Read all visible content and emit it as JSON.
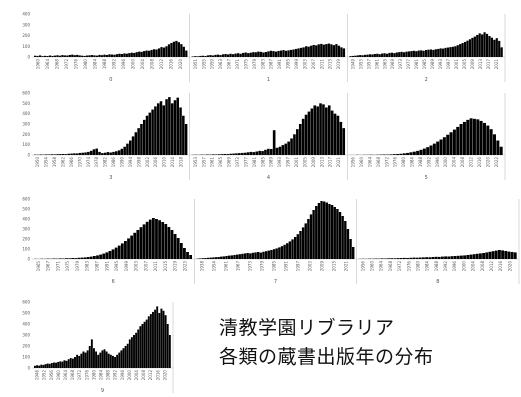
{
  "caption": {
    "line1": "清教学園リブラリア",
    "line2": "各類の蔵書出版年の分布"
  },
  "colors": {
    "bar": "#000000",
    "axis": "#bfbfbf",
    "text": "#555555",
    "grid": "#e6e6e6"
  },
  "chart_data": {
    "type": "bar",
    "rows": [
      {
        "ymax": 400,
        "yticks": [
          0,
          100,
          200,
          300,
          400
        ],
        "panels": [
          {
            "label": "0",
            "xticks": [
              "1960",
              "1964",
              "1968",
              "1972",
              "1976",
              "1980",
              "1984",
              "1988",
              "1992",
              "1996",
              "2000",
              "2004",
              "2008",
              "2012",
              "2016",
              "2020"
            ],
            "values": [
              12,
              10,
              15,
              8,
              11,
              9,
              14,
              10,
              13,
              16,
              12,
              18,
              15,
              14,
              19,
              22,
              17,
              20,
              15,
              12,
              10,
              14,
              16,
              18,
              15,
              13,
              20,
              17,
              22,
              19,
              25,
              23,
              21,
              26,
              30,
              28,
              33,
              31,
              36,
              40,
              38,
              45,
              50,
              48,
              55,
              60,
              58,
              66,
              72,
              70,
              80,
              92,
              88,
              100,
              118,
              130,
              142,
              150,
              138,
              120,
              95,
              60
            ]
          },
          {
            "label": "1",
            "xticks": [
              "1951",
              "1955",
              "1959",
              "1963",
              "1967",
              "1971",
              "1975",
              "1979",
              "1983",
              "1987",
              "1991",
              "1995",
              "1999",
              "2003",
              "2007",
              "2011",
              "2015",
              "2019"
            ],
            "values": [
              5,
              8,
              6,
              10,
              12,
              9,
              15,
              18,
              14,
              20,
              22,
              18,
              25,
              28,
              24,
              30,
              26,
              32,
              35,
              30,
              38,
              42,
              36,
              40,
              45,
              44,
              50,
              48,
              42,
              46,
              52,
              58,
              55,
              50,
              56,
              60,
              64,
              58,
              62,
              66,
              70,
              75,
              80,
              85,
              90,
              100,
              96,
              105,
              112,
              108,
              118,
              122,
              115,
              120,
              125,
              118,
              110,
              120,
              105,
              90,
              80
            ]
          },
          {
            "label": "2",
            "xticks": [
              "1949",
              "1953",
              "1957",
              "1961",
              "1965",
              "1969",
              "1973",
              "1977",
              "1981",
              "1985",
              "1989",
              "1993",
              "1997",
              "2001",
              "2005",
              "2009",
              "2013",
              "2017",
              "2021"
            ],
            "values": [
              8,
              10,
              12,
              15,
              18,
              16,
              20,
              22,
              25,
              24,
              28,
              30,
              26,
              32,
              35,
              30,
              38,
              40,
              36,
              42,
              45,
              48,
              44,
              50,
              52,
              55,
              58,
              54,
              60,
              62,
              58,
              65,
              68,
              70,
              66,
              72,
              75,
              80,
              78,
              85,
              88,
              92,
              95,
              100,
              110,
              120,
              130,
              140,
              152,
              165,
              178,
              190,
              205,
              220,
              210,
              230,
              215,
              195,
              180,
              160,
              175,
              150,
              90
            ]
          }
        ]
      },
      {
        "ymax": 600,
        "yticks": [
          0,
          100,
          200,
          300,
          400,
          500,
          600
        ],
        "panels": [
          {
            "label": "3",
            "xticks": [
              "1950",
              "1954",
              "1958",
              "1962",
              "1966",
              "1970",
              "1974",
              "1978",
              "1982",
              "1986",
              "1990",
              "1994",
              "1998",
              "2002",
              "2006",
              "2010",
              "2014",
              "2018"
            ],
            "values": [
              4,
              3,
              5,
              4,
              6,
              5,
              7,
              6,
              8,
              9,
              10,
              8,
              12,
              14,
              16,
              15,
              20,
              22,
              25,
              30,
              40,
              55,
              62,
              30,
              18,
              22,
              28,
              24,
              30,
              36,
              45,
              60,
              80,
              110,
              140,
              180,
              220,
              260,
              300,
              340,
              380,
              410,
              440,
              470,
              500,
              520,
              480,
              540,
              560,
              500,
              530,
              555,
              460,
              380,
              300
            ]
          },
          {
            "label": "4",
            "xticks": [
              "1953",
              "1957",
              "1961",
              "1965",
              "1969",
              "1973",
              "1977",
              "1981",
              "1985",
              "1989",
              "1993",
              "1997",
              "2001",
              "2005",
              "2009",
              "2013",
              "2017",
              "2021"
            ],
            "values": [
              2,
              3,
              2,
              4,
              3,
              5,
              4,
              6,
              5,
              7,
              8,
              10,
              9,
              12,
              14,
              16,
              18,
              20,
              22,
              26,
              30,
              28,
              34,
              40,
              38,
              50,
              60,
              58,
              240,
              70,
              80,
              96,
              110,
              130,
              160,
              200,
              250,
              300,
              350,
              390,
              420,
              450,
              480,
              470,
              500,
              490,
              460,
              480,
              430,
              400,
              380,
              320,
              260
            ]
          },
          {
            "label": "5",
            "xticks": [
              "1956",
              "1960",
              "1964",
              "1968",
              "1972",
              "1976",
              "1980",
              "1984",
              "1988",
              "1992",
              "1996",
              "2000",
              "2004",
              "2008",
              "2012",
              "2016",
              "2020",
              "2022"
            ],
            "values": [
              1,
              1,
              2,
              1,
              2,
              2,
              3,
              2,
              3,
              4,
              5,
              4,
              6,
              8,
              10,
              12,
              16,
              20,
              26,
              32,
              40,
              50,
              62,
              76,
              92,
              110,
              130,
              150,
              172,
              196,
              220,
              246,
              272,
              300,
              320,
              340,
              355,
              350,
              345,
              330,
              310,
              285,
              250,
              200,
              140,
              80
            ]
          }
        ]
      },
      {
        "ymax": 600,
        "yticks": [
          0,
          100,
          200,
          300,
          400,
          500,
          600
        ],
        "panels": [
          {
            "label": "6",
            "xticks": [
              "1965",
              "1967",
              "1971",
              "1975",
              "1979",
              "1983",
              "1987",
              "1991",
              "1995",
              "1999",
              "2003",
              "2007",
              "2011",
              "2015",
              "2019",
              "2023"
            ],
            "values": [
              2,
              1,
              3,
              2,
              4,
              3,
              5,
              4,
              6,
              5,
              8,
              7,
              10,
              9,
              12,
              14,
              16,
              20,
              24,
              30,
              36,
              44,
              54,
              66,
              80,
              96,
              114,
              134,
              156,
              180,
              206,
              234,
              262,
              290,
              318,
              346,
              372,
              394,
              410,
              400,
              388,
              370,
              350,
              320,
              290,
              250,
              210,
              160,
              110,
              70,
              40
            ]
          },
          {
            "label": "7",
            "xticks": [
              "1938",
              "1954",
              "1961",
              "1967",
              "1973",
              "1979",
              "1985",
              "1991",
              "1997",
              "2003",
              "2009",
              "2015",
              "2021"
            ],
            "values": [
              4,
              6,
              8,
              10,
              12,
              14,
              16,
              18,
              20,
              24,
              26,
              30,
              34,
              36,
              40,
              44,
              48,
              52,
              56,
              60,
              56,
              62,
              66,
              70,
              64,
              72,
              78,
              84,
              90,
              98,
              106,
              116,
              128,
              142,
              158,
              176,
              196,
              220,
              248,
              280,
              316,
              356,
              400,
              446,
              490,
              530,
              560,
              580,
              575,
              565,
              550,
              540,
              520,
              500,
              470,
              430,
              380,
              300,
              200,
              120
            ]
          },
          {
            "label": "8",
            "xticks": [
              "1956",
              "1960",
              "1964",
              "1968",
              "1972",
              "1976",
              "1980",
              "1984",
              "1988",
              "1992",
              "1996",
              "2000",
              "2004",
              "2008",
              "2012",
              "2016",
              "2020"
            ],
            "values": [
              2,
              3,
              2,
              4,
              3,
              5,
              4,
              6,
              5,
              7,
              8,
              7,
              9,
              10,
              11,
              10,
              12,
              14,
              13,
              15,
              16,
              18,
              17,
              20,
              22,
              21,
              24,
              26,
              25,
              28,
              30,
              32,
              34,
              36,
              40,
              44,
              48,
              52,
              56,
              60,
              66,
              72,
              78,
              84,
              90,
              86,
              80,
              74,
              70,
              66
            ]
          }
        ]
      },
      {
        "ymax": 600,
        "yticks": [
          0,
          100,
          200,
          300,
          400,
          500,
          600
        ],
        "panels": [
          {
            "label": "9",
            "xticks": [
              "1946",
              "1952",
              "1956",
              "1960",
              "1964",
              "1968",
              "1972",
              "1976",
              "1980",
              "1984",
              "1988",
              "1992",
              "1996",
              "2000",
              "2004",
              "2008",
              "2012",
              "2016",
              "2020"
            ],
            "values": [
              20,
              25,
              22,
              30,
              28,
              35,
              40,
              38,
              45,
              50,
              48,
              55,
              60,
              58,
              70,
              65,
              80,
              90,
              85,
              100,
              120,
              110,
              130,
              150,
              140,
              160,
              200,
              260,
              180,
              150,
              120,
              140,
              160,
              170,
              150,
              130,
              120,
              110,
              100,
              120,
              140,
              160,
              180,
              200,
              220,
              260,
              280,
              300,
              320,
              350,
              380,
              400,
              420,
              440,
              470,
              490,
              510,
              530,
              560,
              500,
              540,
              520,
              480,
              400,
              300
            ]
          }
        ]
      }
    ]
  }
}
